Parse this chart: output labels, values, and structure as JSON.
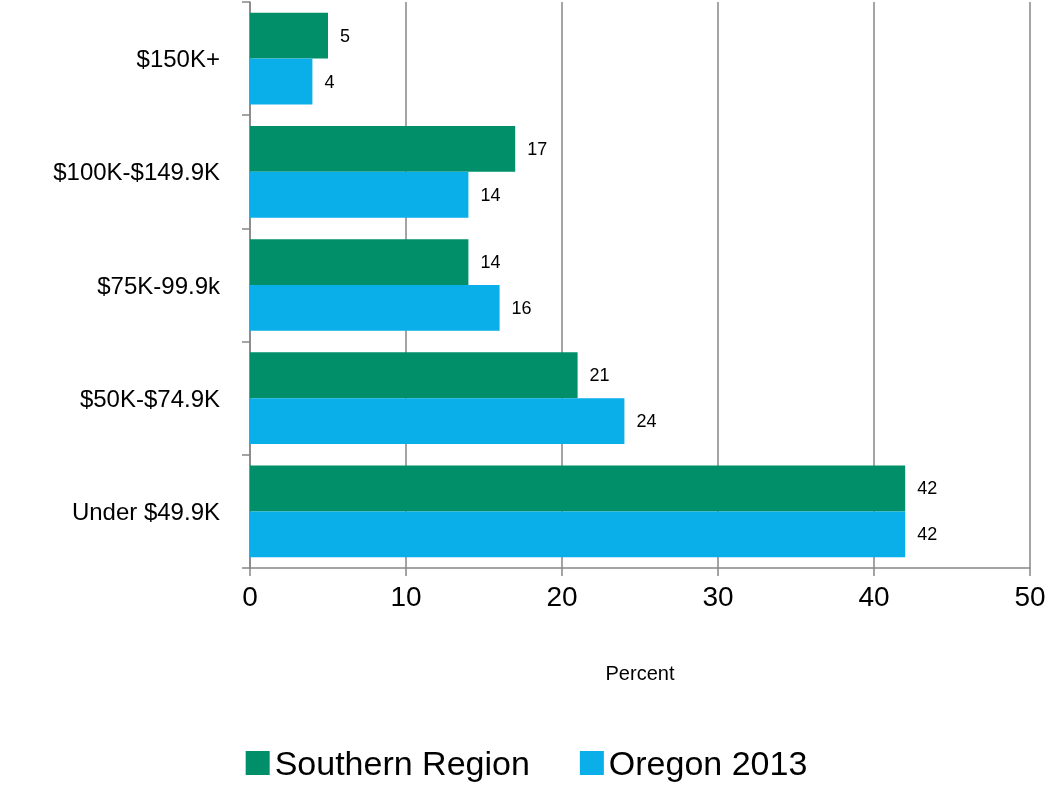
{
  "chart_data": {
    "type": "bar",
    "orientation": "horizontal",
    "categories": [
      "$150K+",
      "$100K-$149.9K",
      "$75K-99.9k",
      "$50K-$74.9K",
      "Under $49.9K"
    ],
    "series": [
      {
        "name": "Southern Region",
        "color": "#008f68",
        "values": [
          5,
          17,
          14,
          21,
          42
        ]
      },
      {
        "name": "Oregon 2013",
        "color": "#0aaee8",
        "values": [
          4,
          14,
          16,
          24,
          42
        ]
      }
    ],
    "xlabel": "Percent",
    "xlim": [
      0,
      50
    ],
    "xticks": [
      0,
      10,
      20,
      30,
      40,
      50
    ],
    "grid": "x",
    "legend": "bottom",
    "data_labels": true
  }
}
